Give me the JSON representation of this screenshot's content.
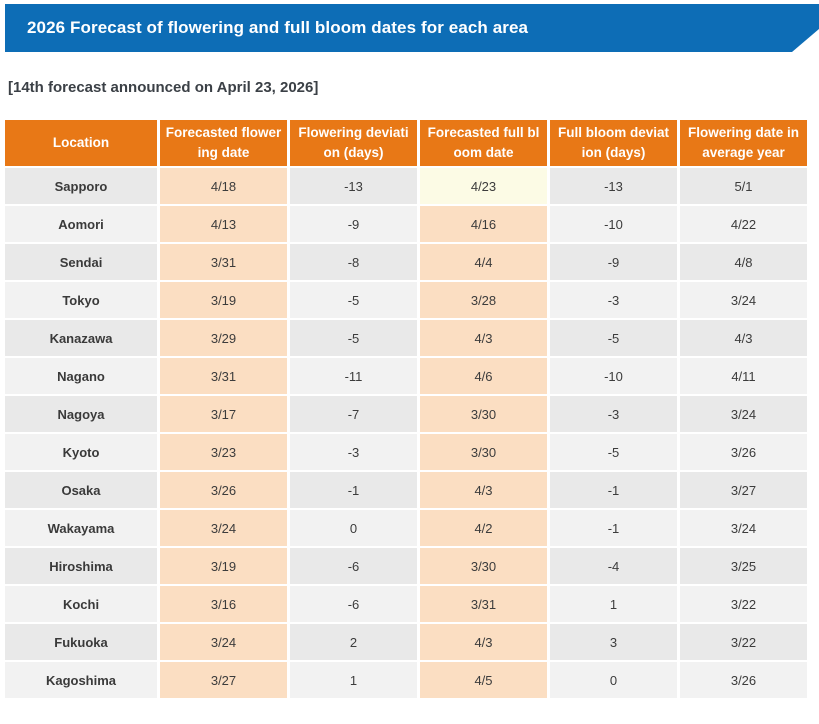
{
  "banner": {
    "title": "2026 Forecast of flowering and full bloom dates for each area",
    "bg_color": "#0D6DB6"
  },
  "subtitle": "[14th forecast announced on April 23, 2026]",
  "table": {
    "columns": [
      {
        "label": "Location"
      },
      {
        "label": "Forecasted flower\ning date"
      },
      {
        "label": "Flowering deviati\non (days)"
      },
      {
        "label": "Forecasted full bl\noom date"
      },
      {
        "label": "Full bloom deviat\nion (days)"
      },
      {
        "label": "Flowering date in\naverage year"
      }
    ],
    "header_bg": "#E87816",
    "date_cell_bg": "#FBDEC2",
    "highlight_cell": {
      "row": "Sapporo",
      "column": "Forecasted full bloom date",
      "color": "#FCFBE5"
    },
    "rows": [
      {
        "location": "Sapporo",
        "flowering_date": "4/18",
        "flowering_deviation": "-13",
        "full_bloom_date": "4/23",
        "full_bloom_deviation": "-13",
        "average_year_date": "5/1"
      },
      {
        "location": "Aomori",
        "flowering_date": "4/13",
        "flowering_deviation": "-9",
        "full_bloom_date": "4/16",
        "full_bloom_deviation": "-10",
        "average_year_date": "4/22"
      },
      {
        "location": "Sendai",
        "flowering_date": "3/31",
        "flowering_deviation": "-8",
        "full_bloom_date": "4/4",
        "full_bloom_deviation": "-9",
        "average_year_date": "4/8"
      },
      {
        "location": "Tokyo",
        "flowering_date": "3/19",
        "flowering_deviation": "-5",
        "full_bloom_date": "3/28",
        "full_bloom_deviation": "-3",
        "average_year_date": "3/24"
      },
      {
        "location": "Kanazawa",
        "flowering_date": "3/29",
        "flowering_deviation": "-5",
        "full_bloom_date": "4/3",
        "full_bloom_deviation": "-5",
        "average_year_date": "4/3"
      },
      {
        "location": "Nagano",
        "flowering_date": "3/31",
        "flowering_deviation": "-11",
        "full_bloom_date": "4/6",
        "full_bloom_deviation": "-10",
        "average_year_date": "4/11"
      },
      {
        "location": "Nagoya",
        "flowering_date": "3/17",
        "flowering_deviation": "-7",
        "full_bloom_date": "3/30",
        "full_bloom_deviation": "-3",
        "average_year_date": "3/24"
      },
      {
        "location": "Kyoto",
        "flowering_date": "3/23",
        "flowering_deviation": "-3",
        "full_bloom_date": "3/30",
        "full_bloom_deviation": "-5",
        "average_year_date": "3/26"
      },
      {
        "location": "Osaka",
        "flowering_date": "3/26",
        "flowering_deviation": "-1",
        "full_bloom_date": "4/3",
        "full_bloom_deviation": "-1",
        "average_year_date": "3/27"
      },
      {
        "location": "Wakayama",
        "flowering_date": "3/24",
        "flowering_deviation": "0",
        "full_bloom_date": "4/2",
        "full_bloom_deviation": "-1",
        "average_year_date": "3/24"
      },
      {
        "location": "Hiroshima",
        "flowering_date": "3/19",
        "flowering_deviation": "-6",
        "full_bloom_date": "3/30",
        "full_bloom_deviation": "-4",
        "average_year_date": "3/25"
      },
      {
        "location": "Kochi",
        "flowering_date": "3/16",
        "flowering_deviation": "-6",
        "full_bloom_date": "3/31",
        "full_bloom_deviation": "1",
        "average_year_date": "3/22"
      },
      {
        "location": "Fukuoka",
        "flowering_date": "3/24",
        "flowering_deviation": "2",
        "full_bloom_date": "4/3",
        "full_bloom_deviation": "3",
        "average_year_date": "3/22"
      },
      {
        "location": "Kagoshima",
        "flowering_date": "3/27",
        "flowering_deviation": "1",
        "full_bloom_date": "4/5",
        "full_bloom_deviation": "0",
        "average_year_date": "3/26"
      }
    ]
  }
}
